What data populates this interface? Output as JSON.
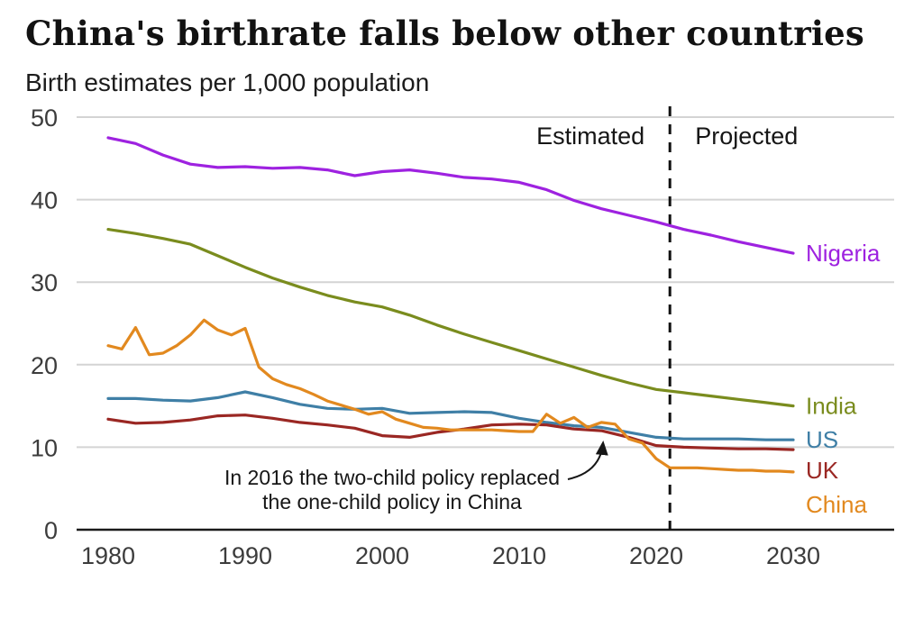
{
  "chart_data": {
    "type": "line",
    "title": "China's birthrate falls below other countries",
    "subtitle": "Birth estimates per 1,000 population",
    "xlabel": "",
    "ylabel": "",
    "xlim": [
      1980,
      2030
    ],
    "ylim": [
      0,
      50
    ],
    "xticks": [
      1980,
      1990,
      2000,
      2010,
      2020,
      2030
    ],
    "yticks": [
      0,
      10,
      20,
      30,
      40,
      50
    ],
    "grid": "horizontal",
    "divider": {
      "year": 2021,
      "left_label": "Estimated",
      "right_label": "Projected"
    },
    "annotation": {
      "line1": "In 2016 the two-child policy replaced",
      "line2": "the one-child policy in China",
      "target": "China line at 2016"
    },
    "series": [
      {
        "name": "Nigeria",
        "color": "#9e22e0",
        "label_dy": 0,
        "x": [
          1980,
          1982,
          1984,
          1986,
          1988,
          1990,
          1992,
          1994,
          1996,
          1998,
          2000,
          2002,
          2004,
          2006,
          2008,
          2010,
          2012,
          2014,
          2016,
          2018,
          2020,
          2022,
          2024,
          2026,
          2028,
          2030
        ],
        "y": [
          47.5,
          46.8,
          45.4,
          44.3,
          43.9,
          44.0,
          43.8,
          43.9,
          43.6,
          42.9,
          43.4,
          43.6,
          43.2,
          42.7,
          42.5,
          42.1,
          41.2,
          39.9,
          38.9,
          38.1,
          37.3,
          36.4,
          35.7,
          34.9,
          34.2,
          33.5
        ]
      },
      {
        "name": "India",
        "color": "#7a8c1e",
        "label_dy": 0,
        "x": [
          1980,
          1982,
          1984,
          1986,
          1988,
          1990,
          1992,
          1994,
          1996,
          1998,
          2000,
          2002,
          2004,
          2006,
          2008,
          2010,
          2012,
          2014,
          2016,
          2018,
          2020,
          2022,
          2024,
          2026,
          2028,
          2030
        ],
        "y": [
          36.4,
          35.9,
          35.3,
          34.6,
          33.2,
          31.8,
          30.5,
          29.4,
          28.4,
          27.6,
          27.0,
          26.0,
          24.8,
          23.7,
          22.7,
          21.7,
          20.7,
          19.7,
          18.7,
          17.8,
          17.0,
          16.6,
          16.2,
          15.8,
          15.4,
          15.0
        ]
      },
      {
        "name": "US",
        "color": "#3f7fa6",
        "label_dy": 0,
        "x": [
          1980,
          1982,
          1984,
          1986,
          1988,
          1990,
          1992,
          1994,
          1996,
          1998,
          2000,
          2002,
          2004,
          2006,
          2008,
          2010,
          2012,
          2014,
          2016,
          2018,
          2020,
          2022,
          2024,
          2026,
          2028,
          2030
        ],
        "y": [
          15.9,
          15.9,
          15.7,
          15.6,
          16.0,
          16.7,
          16.0,
          15.2,
          14.7,
          14.6,
          14.7,
          14.1,
          14.2,
          14.3,
          14.2,
          13.5,
          13.0,
          12.6,
          12.4,
          11.8,
          11.2,
          11.0,
          11.0,
          11.0,
          10.9,
          10.9
        ]
      },
      {
        "name": "UK",
        "color": "#9a2723",
        "label_dy": 23,
        "x": [
          1980,
          1982,
          1984,
          1986,
          1988,
          1990,
          1992,
          1994,
          1996,
          1998,
          2000,
          2002,
          2004,
          2006,
          2008,
          2010,
          2012,
          2014,
          2016,
          2018,
          2020,
          2022,
          2024,
          2026,
          2028,
          2030
        ],
        "y": [
          13.4,
          12.9,
          13.0,
          13.3,
          13.8,
          13.9,
          13.5,
          13.0,
          12.7,
          12.3,
          11.4,
          11.2,
          11.8,
          12.2,
          12.7,
          12.8,
          12.7,
          12.2,
          12.0,
          11.2,
          10.2,
          10.0,
          9.9,
          9.8,
          9.8,
          9.7
        ]
      },
      {
        "name": "China",
        "color": "#e2891f",
        "label_dy": 36,
        "x": [
          1980,
          1981,
          1982,
          1983,
          1984,
          1985,
          1986,
          1987,
          1988,
          1989,
          1990,
          1991,
          1992,
          1993,
          1994,
          1995,
          1996,
          1997,
          1998,
          1999,
          2000,
          2001,
          2002,
          2003,
          2004,
          2005,
          2006,
          2007,
          2008,
          2009,
          2010,
          2011,
          2012,
          2013,
          2014,
          2015,
          2016,
          2017,
          2018,
          2019,
          2020,
          2021,
          2022,
          2023,
          2024,
          2025,
          2026,
          2027,
          2028,
          2029,
          2030
        ],
        "y": [
          22.3,
          21.9,
          24.5,
          21.2,
          21.4,
          22.3,
          23.6,
          25.4,
          24.2,
          23.6,
          24.4,
          19.7,
          18.3,
          17.6,
          17.1,
          16.4,
          15.6,
          15.1,
          14.6,
          14.0,
          14.3,
          13.4,
          12.9,
          12.4,
          12.3,
          12.1,
          12.1,
          12.1,
          12.1,
          12.0,
          11.9,
          11.9,
          14.0,
          12.9,
          13.6,
          12.4,
          13.0,
          12.8,
          11.0,
          10.5,
          8.6,
          7.5,
          7.5,
          7.5,
          7.4,
          7.3,
          7.2,
          7.2,
          7.1,
          7.1,
          7.0
        ]
      }
    ]
  }
}
